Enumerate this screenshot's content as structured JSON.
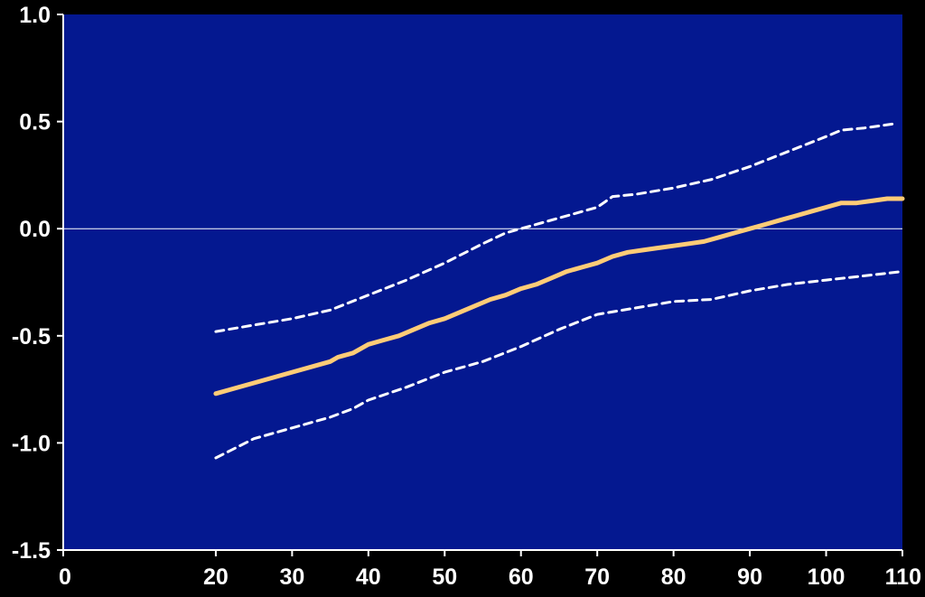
{
  "chart_data": {
    "type": "line",
    "xlim": [
      0,
      110
    ],
    "ylim": [
      -1.5,
      1.0
    ],
    "x_ticks": [
      0,
      20,
      30,
      40,
      50,
      60,
      70,
      80,
      90,
      100,
      110
    ],
    "y_ticks": [
      1.0,
      0.5,
      0.0,
      -0.5,
      -1.0,
      -1.5
    ],
    "x_tick_labels": [
      "0",
      "20",
      "30",
      "40",
      "50",
      "60",
      "70",
      "80",
      "90",
      "100",
      "110"
    ],
    "y_tick_labels": [
      "1.0",
      "0.5",
      "0.0",
      "-0.5",
      "-1.0",
      "-1.5"
    ],
    "reference_line_y": 0.0,
    "grid": false,
    "colors": {
      "background": "#000000",
      "plot_area": "#041890",
      "estimate": "#ffcc77",
      "confidence_band": "#ffffff",
      "axis": "#ffffff"
    },
    "series": [
      {
        "style": "solid",
        "x": [
          20,
          25,
          30,
          35,
          36,
          38,
          40,
          42,
          44,
          46,
          48,
          50,
          52,
          54,
          56,
          58,
          60,
          62,
          64,
          66,
          68,
          70,
          72,
          74,
          76,
          78,
          80,
          82,
          84,
          86,
          88,
          90,
          92,
          94,
          96,
          98,
          100,
          102,
          104,
          106,
          108,
          110
        ],
        "values": [
          -0.77,
          -0.72,
          -0.67,
          -0.62,
          -0.6,
          -0.58,
          -0.54,
          -0.52,
          -0.5,
          -0.47,
          -0.44,
          -0.42,
          -0.39,
          -0.36,
          -0.33,
          -0.31,
          -0.28,
          -0.26,
          -0.23,
          -0.2,
          -0.18,
          -0.16,
          -0.13,
          -0.11,
          -0.1,
          -0.09,
          -0.08,
          -0.07,
          -0.06,
          -0.04,
          -0.02,
          0.0,
          0.02,
          0.04,
          0.06,
          0.08,
          0.1,
          0.12,
          0.12,
          0.13,
          0.14,
          0.14
        ]
      },
      {
        "style": "dashed",
        "x": [
          20,
          25,
          30,
          35,
          40,
          45,
          50,
          55,
          58,
          60,
          65,
          70,
          72,
          75,
          80,
          85,
          90,
          95,
          100,
          102,
          105,
          109
        ],
        "values": [
          -0.48,
          -0.45,
          -0.42,
          -0.38,
          -0.31,
          -0.24,
          -0.16,
          -0.07,
          -0.02,
          0.0,
          0.05,
          0.1,
          0.15,
          0.16,
          0.19,
          0.23,
          0.29,
          0.36,
          0.43,
          0.46,
          0.47,
          0.49
        ]
      },
      {
        "style": "dashed",
        "x": [
          20,
          25,
          30,
          35,
          38,
          40,
          45,
          50,
          55,
          60,
          65,
          70,
          75,
          80,
          85,
          90,
          95,
          100,
          105,
          110
        ],
        "values": [
          -1.07,
          -0.98,
          -0.93,
          -0.88,
          -0.84,
          -0.8,
          -0.74,
          -0.67,
          -0.62,
          -0.55,
          -0.47,
          -0.4,
          -0.37,
          -0.34,
          -0.33,
          -0.29,
          -0.26,
          -0.24,
          -0.22,
          -0.2
        ]
      }
    ]
  }
}
